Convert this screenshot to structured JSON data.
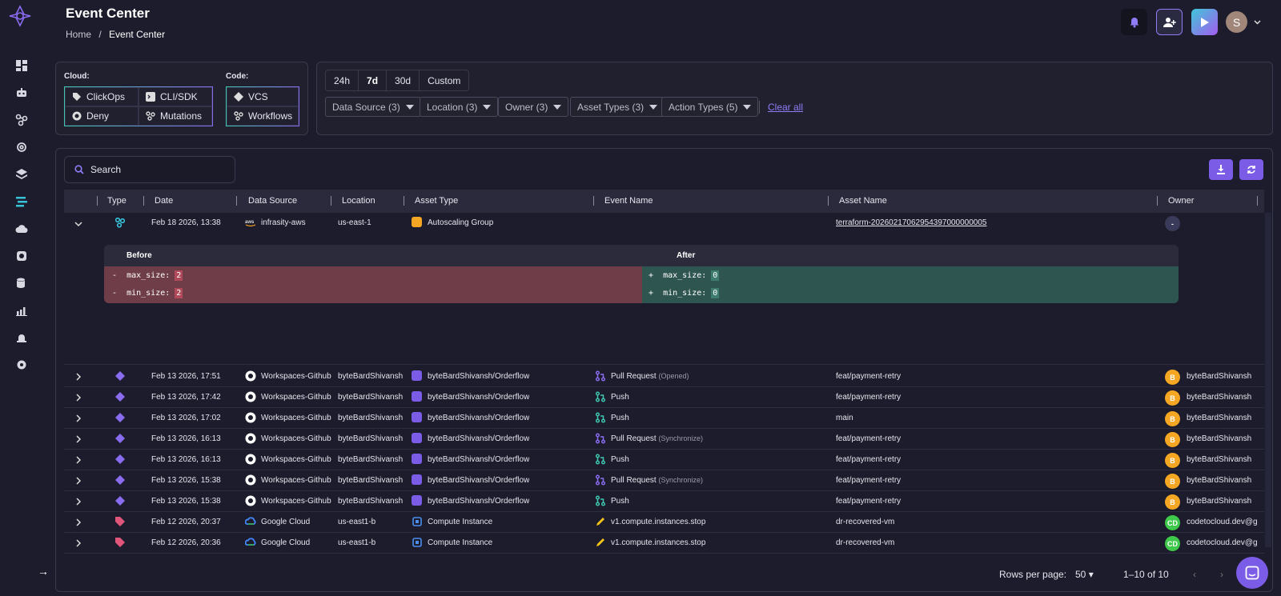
{
  "header": {
    "title": "Event Center",
    "breadcrumb_home": "Home",
    "breadcrumb_sep": "/",
    "breadcrumb_current": "Event Center",
    "avatar_initial": "S"
  },
  "colors": {
    "accent": "#7b5ce6",
    "teal": "#38c2d8",
    "orange": "#f5a623",
    "green": "#3ec94a"
  },
  "sidebar": {
    "icons": [
      "dashboard-icon",
      "robot-icon",
      "graph-icon",
      "settings-cog-icon",
      "layers-icon",
      "event-center-icon",
      "cloud-check-icon",
      "sync-icon",
      "database-check-icon",
      "analytics-icon",
      "alarm-icon",
      "gear-icon"
    ]
  },
  "cloud_filter": {
    "label": "Cloud:",
    "items": [
      "ClickOps",
      "CLI/SDK",
      "Deny",
      "Mutations"
    ]
  },
  "code_filter": {
    "label": "Code:",
    "items": [
      "VCS",
      "Workflows"
    ]
  },
  "ranges": [
    "24h",
    "7d",
    "30d",
    "Custom"
  ],
  "selected_range": "7d",
  "filters": [
    "Data Source (3)",
    "Location (3)",
    "Owner (3)",
    "Asset Types (3)",
    "Action Types (5)"
  ],
  "clear_all": "Clear all",
  "search": {
    "placeholder": "Search"
  },
  "columns": [
    "Type",
    "Date",
    "Data Source",
    "Location",
    "Asset Type",
    "Event Name",
    "Asset Name",
    "Owner"
  ],
  "expanded_row": {
    "date": "Feb 18 2026, 13:38",
    "data_source": "infrasity-aws",
    "location": "us-east-1",
    "asset_type": "Autoscaling Group",
    "asset_name": "terraform-20260217062954397000000005",
    "owner": "-",
    "diff": {
      "before_label": "Before",
      "after_label": "After",
      "before": [
        {
          "sign": "-",
          "key": "max_size:",
          "val": "2"
        },
        {
          "sign": "-",
          "key": "min_size:",
          "val": "2"
        }
      ],
      "after": [
        {
          "sign": "+",
          "key": "max_size:",
          "val": "0"
        },
        {
          "sign": "+",
          "key": "min_size:",
          "val": "0"
        }
      ]
    }
  },
  "rows": [
    {
      "date": "Feb 13 2026, 17:51",
      "source": "Workspaces-Github",
      "location": "byteBardShivansh",
      "asset": "byteBardShivansh/Orderflow",
      "event": "Pull Request",
      "event_sub": "(Opened)",
      "asset_name": "feat/payment-retry",
      "owner": "byteBardShivansh",
      "owner_initial": "B"
    },
    {
      "date": "Feb 13 2026, 17:42",
      "source": "Workspaces-Github",
      "location": "byteBardShivansh",
      "asset": "byteBardShivansh/Orderflow",
      "event": "Push",
      "event_sub": "",
      "asset_name": "feat/payment-retry",
      "owner": "byteBardShivansh",
      "owner_initial": "B"
    },
    {
      "date": "Feb 13 2026, 17:02",
      "source": "Workspaces-Github",
      "location": "byteBardShivansh",
      "asset": "byteBardShivansh/Orderflow",
      "event": "Push",
      "event_sub": "",
      "asset_name": "main",
      "owner": "byteBardShivansh",
      "owner_initial": "B"
    },
    {
      "date": "Feb 13 2026, 16:13",
      "source": "Workspaces-Github",
      "location": "byteBardShivansh",
      "asset": "byteBardShivansh/Orderflow",
      "event": "Pull Request",
      "event_sub": "(Synchronize)",
      "asset_name": "feat/payment-retry",
      "owner": "byteBardShivansh",
      "owner_initial": "B"
    },
    {
      "date": "Feb 13 2026, 16:13",
      "source": "Workspaces-Github",
      "location": "byteBardShivansh",
      "asset": "byteBardShivansh/Orderflow",
      "event": "Push",
      "event_sub": "",
      "asset_name": "feat/payment-retry",
      "owner": "byteBardShivansh",
      "owner_initial": "B"
    },
    {
      "date": "Feb 13 2026, 15:38",
      "source": "Workspaces-Github",
      "location": "byteBardShivansh",
      "asset": "byteBardShivansh/Orderflow",
      "event": "Pull Request",
      "event_sub": "(Synchronize)",
      "asset_name": "feat/payment-retry",
      "owner": "byteBardShivansh",
      "owner_initial": "B"
    },
    {
      "date": "Feb 13 2026, 15:38",
      "source": "Workspaces-Github",
      "location": "byteBardShivansh",
      "asset": "byteBardShivansh/Orderflow",
      "event": "Push",
      "event_sub": "",
      "asset_name": "feat/payment-retry",
      "owner": "byteBardShivansh",
      "owner_initial": "B"
    },
    {
      "date": "Feb 12 2026, 20:37",
      "source": "Google Cloud",
      "location": "us-east1-b",
      "asset": "Compute Instance",
      "event": "v1.compute.instances.stop",
      "event_sub": "",
      "asset_name": "dr-recovered-vm",
      "owner": "codetocloud.dev@g",
      "owner_initial": "CD"
    },
    {
      "date": "Feb 12 2026, 20:36",
      "source": "Google Cloud",
      "location": "us-east1-b",
      "asset": "Compute Instance",
      "event": "v1.compute.instances.stop",
      "event_sub": "",
      "asset_name": "dr-recovered-vm",
      "owner": "codetocloud.dev@g",
      "owner_initial": "CD"
    }
  ],
  "footer": {
    "rows_per_page_label": "Rows per page:",
    "rows_per_page": "50",
    "range_text": "1–10 of 10"
  }
}
